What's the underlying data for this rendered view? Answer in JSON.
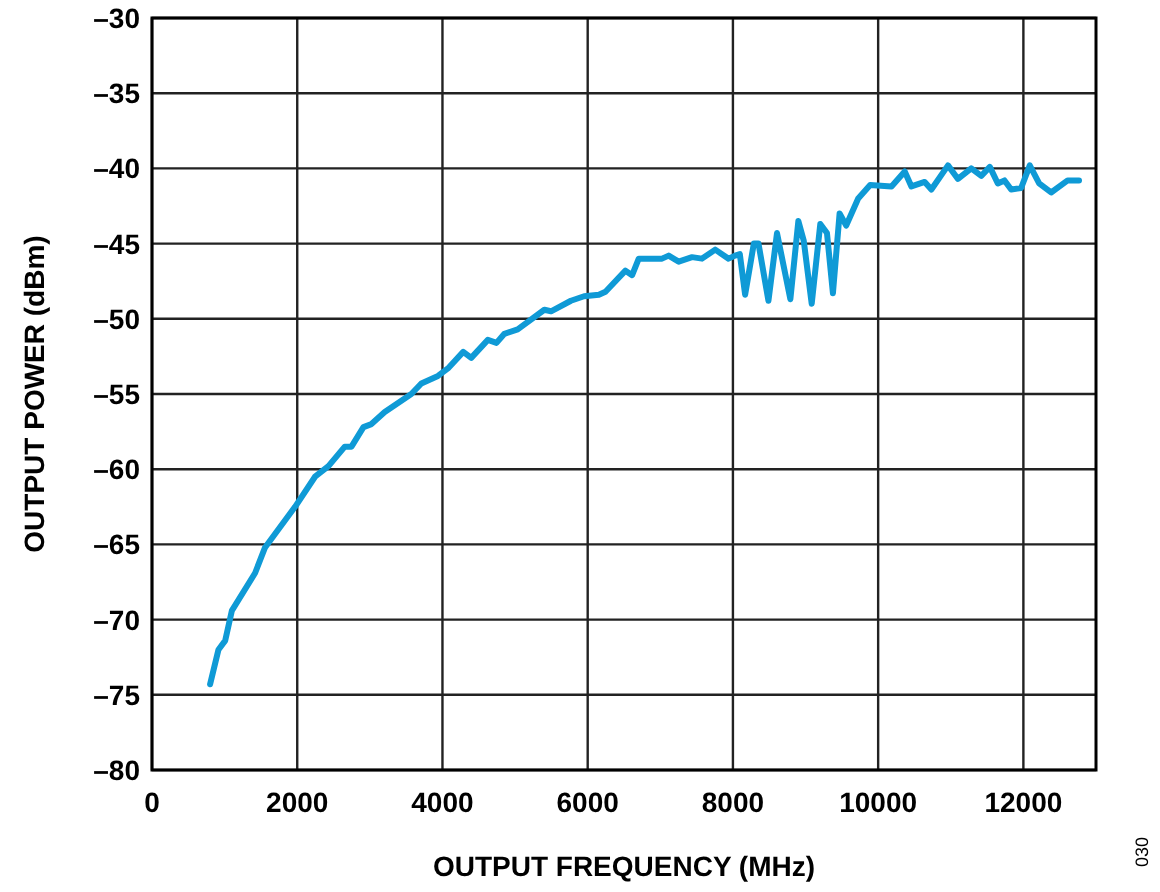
{
  "chart_data": {
    "type": "line",
    "xlabel": "OUTPUT FREQUENCY (MHz)",
    "ylabel": "OUTPUT POWER (dBm)",
    "annotations": [
      "030"
    ],
    "xlim": [
      0,
      13000
    ],
    "xticks": [
      0,
      2000,
      4000,
      6000,
      8000,
      10000,
      12000
    ],
    "ylim": [
      -80,
      -30
    ],
    "yticks": [
      {
        "value": -80,
        "label": "–80"
      },
      {
        "value": -75,
        "label": "–75"
      },
      {
        "value": -70,
        "label": "–70"
      },
      {
        "value": -65,
        "label": "–65"
      },
      {
        "value": -60,
        "label": "–60"
      },
      {
        "value": -55,
        "label": "–55"
      },
      {
        "value": -50,
        "label": "–50"
      },
      {
        "value": -45,
        "label": "–45"
      },
      {
        "value": -40,
        "label": "–40"
      },
      {
        "value": -35,
        "label": "–35"
      },
      {
        "value": -30,
        "label": "–30"
      }
    ],
    "grid": true,
    "marker": "none",
    "line_style": "solid",
    "x": [
      800,
      915,
      1008,
      1100,
      1420,
      1557,
      1970,
      2245,
      2430,
      2655,
      2747,
      2912,
      3022,
      3205,
      3480,
      3571,
      3709,
      3938,
      4075,
      4286,
      4396,
      4625,
      4744,
      4853,
      5036,
      5403,
      5495,
      5769,
      5950,
      6154,
      6245,
      6520,
      6612,
      6703,
      7024,
      7115,
      7253,
      7437,
      7574,
      7756,
      7940,
      8030,
      8095,
      8168,
      8288,
      8352,
      8489,
      8607,
      8791,
      8901,
      8975,
      9085,
      9203,
      9295,
      9377,
      9469,
      9560,
      9725,
      9890,
      10184,
      10366,
      10458,
      10641,
      10733,
      10962,
      11099,
      11282,
      11420,
      11538,
      11648,
      11740,
      11832,
      11969,
      12088,
      12217,
      12382,
      12610,
      12766
    ],
    "series": [
      {
        "color": "#0f9ad6",
        "values": [
          -74.3,
          -72.0,
          -71.4,
          -69.4,
          -66.9,
          -65.2,
          -62.5,
          -60.5,
          -59.8,
          -58.5,
          -58.5,
          -57.2,
          -57.0,
          -56.2,
          -55.3,
          -55.0,
          -54.3,
          -53.8,
          -53.3,
          -52.2,
          -52.6,
          -51.4,
          -51.6,
          -51.0,
          -50.7,
          -49.4,
          -49.5,
          -48.8,
          -48.5,
          -48.4,
          -48.2,
          -46.8,
          -47.1,
          -46.0,
          -46.0,
          -45.8,
          -46.2,
          -45.9,
          -46.0,
          -45.4,
          -46.0,
          -45.8,
          -45.7,
          -48.4,
          -45.0,
          -45.0,
          -48.8,
          -44.3,
          -48.7,
          -43.5,
          -44.8,
          -49.0,
          -43.7,
          -44.3,
          -48.3,
          -43.0,
          -43.8,
          -42.0,
          -41.1,
          -41.2,
          -40.2,
          -41.2,
          -40.9,
          -41.4,
          -39.8,
          -40.7,
          -40.0,
          -40.5,
          -39.9,
          -41.0,
          -40.8,
          -41.4,
          -41.3,
          -39.8,
          -41.0,
          -41.6,
          -40.8,
          -40.8
        ]
      }
    ]
  }
}
